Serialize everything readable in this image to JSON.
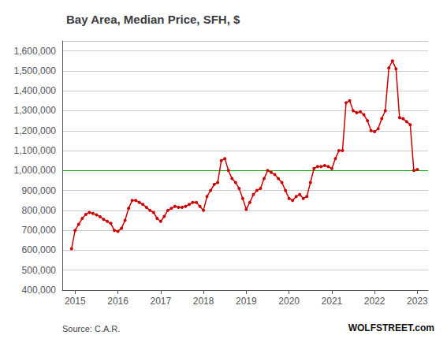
{
  "chart_data": {
    "type": "line",
    "title": "Bay Area, Median Price, SFH, $",
    "annotations": [
      "Source: C.A.R.",
      "WOLFSTREET.com"
    ],
    "color": "#cc0000",
    "marker": "circle",
    "grid": true,
    "xlim": [
      2014.7,
      2023.25
    ],
    "xticks": [
      2015,
      2016,
      2017,
      2018,
      2019,
      2020,
      2021,
      2022,
      2023
    ],
    "ylim": [
      400000,
      1650000
    ],
    "yticks": [
      {
        "value": 400000,
        "label": "400,000"
      },
      {
        "value": 500000,
        "label": "500,000"
      },
      {
        "value": 600000,
        "label": "600,000"
      },
      {
        "value": 700000,
        "label": "700,000"
      },
      {
        "value": 800000,
        "label": "800,000"
      },
      {
        "value": 900000,
        "label": "900,000"
      },
      {
        "value": 1000000,
        "label": "1,000,000"
      },
      {
        "value": 1100000,
        "label": "1,100,000"
      },
      {
        "value": 1200000,
        "label": "1,200,000"
      },
      {
        "value": 1300000,
        "label": "1,300,000"
      },
      {
        "value": 1400000,
        "label": "1,400,000"
      },
      {
        "value": 1500000,
        "label": "1,500,000"
      },
      {
        "value": 1600000,
        "label": "1,600,000"
      }
    ],
    "reference_lines": [
      {
        "y": 1000000,
        "color": "#00aa00"
      }
    ],
    "x": [
      2014.917,
      2015.0,
      2015.083,
      2015.167,
      2015.25,
      2015.333,
      2015.417,
      2015.5,
      2015.583,
      2015.667,
      2015.75,
      2015.833,
      2015.917,
      2016.0,
      2016.083,
      2016.167,
      2016.25,
      2016.333,
      2016.417,
      2016.5,
      2016.583,
      2016.667,
      2016.75,
      2016.833,
      2016.917,
      2017.0,
      2017.083,
      2017.167,
      2017.25,
      2017.333,
      2017.417,
      2017.5,
      2017.583,
      2017.667,
      2017.75,
      2017.833,
      2017.917,
      2018.0,
      2018.083,
      2018.167,
      2018.25,
      2018.333,
      2018.417,
      2018.5,
      2018.583,
      2018.667,
      2018.75,
      2018.833,
      2018.917,
      2019.0,
      2019.083,
      2019.167,
      2019.25,
      2019.333,
      2019.417,
      2019.5,
      2019.583,
      2019.667,
      2019.75,
      2019.833,
      2019.917,
      2020.0,
      2020.083,
      2020.167,
      2020.25,
      2020.333,
      2020.417,
      2020.5,
      2020.583,
      2020.667,
      2020.75,
      2020.833,
      2020.917,
      2021.0,
      2021.083,
      2021.167,
      2021.25,
      2021.333,
      2021.417,
      2021.5,
      2021.583,
      2021.667,
      2021.75,
      2021.833,
      2021.917,
      2022.0,
      2022.083,
      2022.167,
      2022.25,
      2022.333,
      2022.417,
      2022.5,
      2022.583,
      2022.667,
      2022.75,
      2022.833,
      2022.917,
      2023.0
    ],
    "values": [
      608000,
      700000,
      730000,
      760000,
      780000,
      790000,
      785000,
      778000,
      768000,
      755000,
      745000,
      735000,
      700000,
      695000,
      710000,
      750000,
      810000,
      850000,
      850000,
      840000,
      830000,
      815000,
      800000,
      790000,
      760000,
      745000,
      770000,
      800000,
      810000,
      820000,
      815000,
      815000,
      820000,
      830000,
      840000,
      840000,
      820000,
      800000,
      870000,
      900000,
      930000,
      940000,
      1050000,
      1060000,
      1000000,
      960000,
      940000,
      910000,
      860000,
      805000,
      840000,
      880000,
      900000,
      910000,
      960000,
      1000000,
      990000,
      980000,
      960000,
      940000,
      900000,
      860000,
      850000,
      870000,
      880000,
      860000,
      870000,
      940000,
      1010000,
      1020000,
      1020000,
      1025000,
      1020000,
      1010000,
      1060000,
      1100000,
      1100000,
      1340000,
      1350000,
      1300000,
      1290000,
      1295000,
      1280000,
      1250000,
      1200000,
      1195000,
      1210000,
      1260000,
      1300000,
      1515000,
      1550000,
      1510000,
      1265000,
      1260000,
      1245000,
      1230000,
      1000000,
      1005000
    ]
  }
}
